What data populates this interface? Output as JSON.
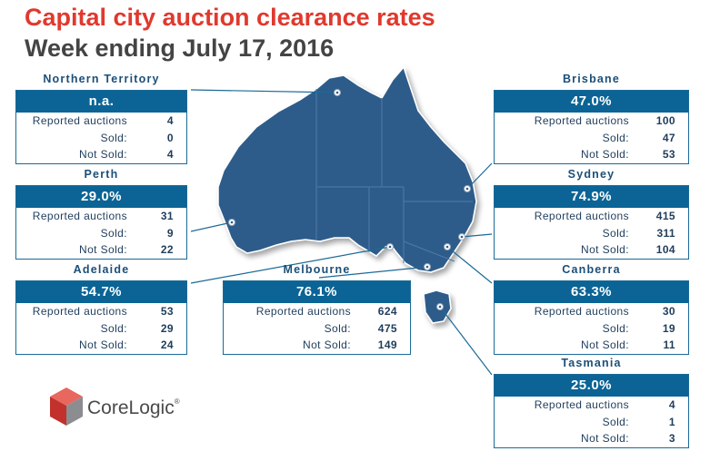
{
  "header": {
    "title": "Capital city auction clearance rates",
    "subtitle": "Week ending July 17, 2016"
  },
  "labels": {
    "reported": "Reported auctions",
    "sold": "Sold:",
    "not_sold": "Not Sold:"
  },
  "regions": {
    "northern_territory": {
      "name": "Northern Territory",
      "rate": "n.a.",
      "reported": "4",
      "sold": "0",
      "not_sold": "4"
    },
    "perth": {
      "name": "Perth",
      "rate": "29.0%",
      "reported": "31",
      "sold": "9",
      "not_sold": "22"
    },
    "adelaide": {
      "name": "Adelaide",
      "rate": "54.7%",
      "reported": "53",
      "sold": "29",
      "not_sold": "24"
    },
    "melbourne": {
      "name": "Melbourne",
      "rate": "76.1%",
      "reported": "624",
      "sold": "475",
      "not_sold": "149"
    },
    "brisbane": {
      "name": "Brisbane",
      "rate": "47.0%",
      "reported": "100",
      "sold": "47",
      "not_sold": "53"
    },
    "sydney": {
      "name": "Sydney",
      "rate": "74.9%",
      "reported": "415",
      "sold": "311",
      "not_sold": "104"
    },
    "canberra": {
      "name": "Canberra",
      "rate": "63.3%",
      "reported": "30",
      "sold": "19",
      "not_sold": "11"
    },
    "tasmania": {
      "name": "Tasmania",
      "rate": "25.0%",
      "reported": "4",
      "sold": "1",
      "not_sold": "3"
    }
  },
  "logo": {
    "text": "CoreLogic",
    "mark": "®"
  },
  "colors": {
    "title": "#e0392e",
    "map_fill": "#2f5b8a",
    "card_header": "#0b6495",
    "region_name": "#1b4f78",
    "logo_red": "#c2312b",
    "logo_grey": "#6d6e71"
  }
}
